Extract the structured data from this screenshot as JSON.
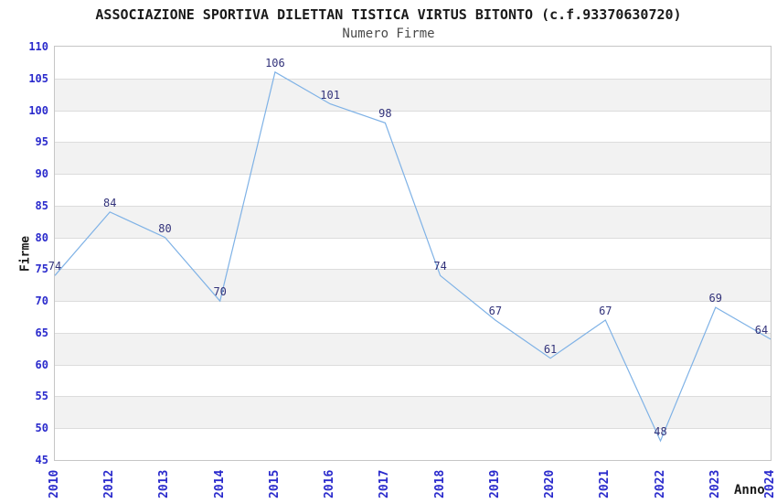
{
  "chart_data": {
    "type": "line",
    "title": "ASSOCIAZIONE SPORTIVA DILETTAN TISTICA VIRTUS BITONTO (c.f.93370630720)",
    "subtitle": "Numero Firme",
    "xlabel": "Anno",
    "ylabel": "Firme",
    "categories": [
      "2010",
      "2012",
      "2013",
      "2014",
      "2015",
      "2016",
      "2017",
      "2018",
      "2019",
      "2020",
      "2021",
      "2022",
      "2023",
      "2024"
    ],
    "series": [
      {
        "name": "Numero Firme",
        "values": [
          74,
          84,
          80,
          70,
          106,
          101,
          98,
          74,
          67,
          61,
          67,
          48,
          69,
          64
        ]
      }
    ],
    "ylim": [
      45,
      110
    ],
    "ytick_step": 5,
    "grid": "horizontal-bands",
    "legend_position": "none",
    "point_labels_visible": true,
    "colors": {
      "line": "#7fb2e6",
      "point_label": "#32327a",
      "tick_label": "#2a2acc",
      "band_alt": "#f2f2f2",
      "band_main": "#ffffff",
      "gridline": "#dcdcdc",
      "plot_border": "#c6c6c6",
      "title": "#1a1a1a",
      "subtitle": "#4a4a4a",
      "axis_title": "#1a1a1a"
    }
  }
}
